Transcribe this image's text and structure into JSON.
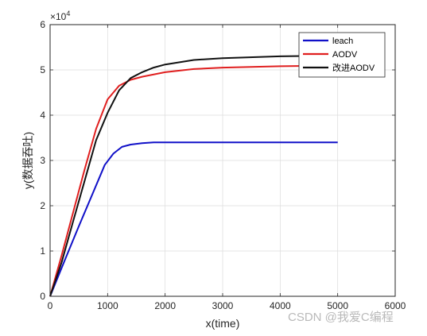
{
  "chart_data": {
    "type": "line",
    "title": "",
    "xlabel": "x(time)",
    "ylabel": "y(数据吞吐)",
    "xlim": [
      0,
      6000
    ],
    "ylim": [
      0,
      60000
    ],
    "x_ticks": [
      0,
      1000,
      2000,
      3000,
      4000,
      5000,
      6000
    ],
    "y_ticks": [
      0,
      1,
      2,
      3,
      4,
      5,
      6
    ],
    "y_exponent": "×10",
    "y_exponent_power": "4",
    "grid": true,
    "legend_position": "top-right",
    "series": [
      {
        "name": "leach",
        "color": "#1010c8",
        "x": [
          0,
          250,
          500,
          750,
          950,
          1100,
          1250,
          1400,
          1600,
          1800,
          2000,
          3000,
          4000,
          5000
        ],
        "y": [
          0,
          7800,
          15500,
          23000,
          29000,
          31500,
          33000,
          33500,
          33800,
          34000,
          34000,
          34000,
          34000,
          34000
        ]
      },
      {
        "name": "AODV",
        "color": "#e01f1f",
        "x": [
          0,
          200,
          400,
          600,
          800,
          1000,
          1200,
          1400,
          1600,
          2000,
          2500,
          3000,
          4000,
          5000
        ],
        "y": [
          0,
          9000,
          18500,
          28000,
          37000,
          43500,
          46500,
          47800,
          48500,
          49500,
          50200,
          50500,
          50800,
          51000
        ]
      },
      {
        "name": "改进AODV",
        "color": "#111111",
        "x": [
          0,
          200,
          400,
          600,
          800,
          1000,
          1200,
          1400,
          1600,
          1800,
          2000,
          2500,
          3000,
          4000,
          5000
        ],
        "y": [
          0,
          7500,
          16500,
          25500,
          34500,
          40500,
          45500,
          48200,
          49500,
          50500,
          51200,
          52200,
          52600,
          53000,
          53200
        ]
      }
    ]
  },
  "watermark": "CSDN @我爱C编程"
}
